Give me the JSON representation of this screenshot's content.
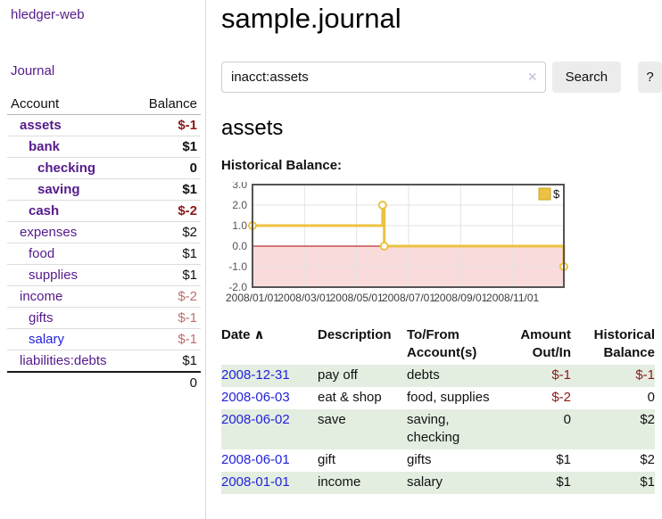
{
  "app": {
    "brand": "hledger-web"
  },
  "sidebar": {
    "journal_link": "Journal",
    "account_header": "Account",
    "balance_header": "Balance",
    "accounts": [
      {
        "name": "assets",
        "balance": "$-1"
      },
      {
        "name": "bank",
        "balance": "$1"
      },
      {
        "name": "checking",
        "balance": "0"
      },
      {
        "name": "saving",
        "balance": "$1"
      },
      {
        "name": "cash",
        "balance": "$-2"
      },
      {
        "name": "expenses",
        "balance": "$2"
      },
      {
        "name": "food",
        "balance": "$1"
      },
      {
        "name": "supplies",
        "balance": "$1"
      },
      {
        "name": "income",
        "balance": "$-2"
      },
      {
        "name": "gifts",
        "balance": "$-1"
      },
      {
        "name": "salary",
        "balance": "$-1"
      },
      {
        "name": "liabilities:debts",
        "balance": "$1"
      }
    ],
    "total": "0"
  },
  "header": {
    "title": "sample.journal",
    "search": {
      "value": "inacct:assets",
      "clear_icon": "✕",
      "search_button": "Search",
      "help_button": "?"
    }
  },
  "account_page": {
    "title": "assets",
    "chart_label": "Historical Balance:"
  },
  "chart_data": {
    "type": "line",
    "step": true,
    "title": "Historical Balance:",
    "series": [
      {
        "name": "$",
        "color": "#edc240",
        "points": [
          [
            "2008-01-01",
            1
          ],
          [
            "2008-06-01",
            2
          ],
          [
            "2008-06-03",
            0
          ],
          [
            "2008-12-31",
            -1
          ]
        ]
      }
    ],
    "ylim": [
      -2,
      3
    ],
    "yticks": [
      "3.0",
      "2.0",
      "1.0",
      "0.0",
      "-1.0",
      "-2.0"
    ],
    "xlim": [
      "2008-01-01",
      "2008-12-31"
    ],
    "xticks": [
      "2008/01/01",
      "2008/03/01",
      "2008/05/01",
      "2008/07/01",
      "2008/09/01",
      "2008/11/01"
    ],
    "grid": true,
    "legend_position": "top-right",
    "zero_line_color": "#aa0000",
    "negative_region_color": "#f9dbdb",
    "border_color": "#545454",
    "gridline_color": "#e3e3e3"
  },
  "register": {
    "headers": {
      "date": "Date",
      "sort_icon": "∧",
      "description": "Description",
      "accounts_line1": "To/From",
      "accounts_line2": "Account(s)",
      "amount_line1": "Amount",
      "amount_line2": "Out/In",
      "balance_line1": "Historical",
      "balance_line2": "Balance"
    },
    "rows": [
      {
        "date": "2008-12-31",
        "description": "pay off",
        "accounts": "debts",
        "amount": "$-1",
        "balance": "$-1"
      },
      {
        "date": "2008-06-03",
        "description": "eat & shop",
        "accounts": "food, supplies",
        "amount": "$-2",
        "balance": "0"
      },
      {
        "date": "2008-06-02",
        "description": "save",
        "accounts": "saving, checking",
        "amount": "0",
        "balance": "$2"
      },
      {
        "date": "2008-06-01",
        "description": "gift",
        "accounts": "gifts",
        "amount": "$1",
        "balance": "$2"
      },
      {
        "date": "2008-01-01",
        "description": "income",
        "accounts": "salary",
        "amount": "$1",
        "balance": "$1"
      }
    ]
  },
  "colors": {
    "accent_purple": "#551a8b",
    "link_blue": "#2222dd",
    "negative_dark": "#8b1a1a",
    "negative_light": "#bd6e6e",
    "row_stripe_green": "#e3eee1",
    "chart_line": "#edc240"
  }
}
